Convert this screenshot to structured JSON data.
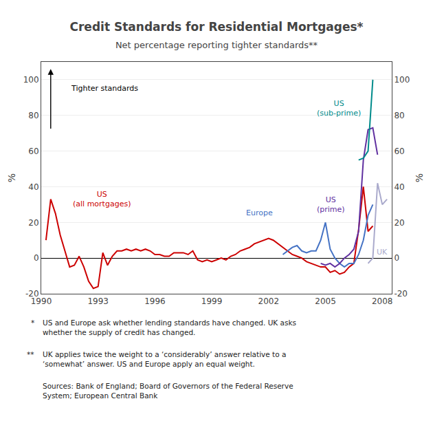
{
  "chart_data": {
    "type": "line",
    "title": "Credit Standards for Residential Mortgages*",
    "subtitle": "Net percentage reporting tighter standards**",
    "ylabel": "%",
    "y2label": "%",
    "xlim": [
      1990,
      2008.5
    ],
    "xticks": [
      1990,
      1993,
      1996,
      1999,
      2002,
      2005,
      2008
    ],
    "ylim": [
      -20,
      110
    ],
    "yticks": [
      -20,
      0,
      20,
      40,
      60,
      80,
      100
    ],
    "y2lim": [
      -20,
      110
    ],
    "y2ticks": [
      -20,
      0,
      20,
      40,
      60,
      80,
      100
    ],
    "grid": true,
    "series": [
      {
        "name": "US\n(all mortgages)",
        "color": "#cc0000",
        "label_x": 1993.2,
        "label_y": 27,
        "x": [
          1990.25,
          1990.5,
          1990.75,
          1991.0,
          1991.25,
          1991.5,
          1991.75,
          1992.0,
          1992.25,
          1992.5,
          1992.75,
          1993.0,
          1993.25,
          1993.5,
          1993.75,
          1994.0,
          1994.25,
          1994.5,
          1994.75,
          1995.0,
          1995.25,
          1995.5,
          1995.75,
          1996.0,
          1996.25,
          1996.5,
          1996.75,
          1997.0,
          1997.25,
          1997.5,
          1997.75,
          1998.0,
          1998.25,
          1998.5,
          1998.75,
          1999.0,
          1999.25,
          1999.5,
          1999.75,
          2000.0,
          2000.25,
          2000.5,
          2000.75,
          2001.0,
          2001.25,
          2001.5,
          2001.75,
          2002.0,
          2002.25,
          2002.5,
          2002.75,
          2003.0,
          2003.25,
          2003.5,
          2003.75,
          2004.0,
          2004.25,
          2004.5,
          2004.75,
          2005.0,
          2005.25,
          2005.5,
          2005.75,
          2006.0,
          2006.25,
          2006.5,
          2006.75,
          2007.0,
          2007.25,
          2007.5
        ],
        "values": [
          10,
          33,
          25,
          13,
          4,
          -5,
          -4,
          1,
          -5,
          -13,
          -17,
          -16,
          3,
          -4,
          1,
          4,
          4,
          5,
          4,
          5,
          4,
          5,
          4,
          2,
          2,
          1,
          1,
          3,
          3,
          3,
          2,
          4,
          -1,
          -2,
          -1,
          -2,
          -1,
          0,
          -1,
          1,
          2,
          4,
          5,
          6,
          8,
          9,
          10,
          11,
          10,
          8,
          6,
          4,
          2,
          1,
          0,
          -2,
          -3,
          -4,
          -5,
          -5,
          -8,
          -7,
          -9,
          -8,
          -5,
          -3,
          16,
          40,
          15,
          18
        ]
      },
      {
        "name": "Europe",
        "color": "#4472c4",
        "label_x": 2001.5,
        "label_y": 22,
        "x": [
          2002.75,
          2003.0,
          2003.25,
          2003.5,
          2003.75,
          2004.0,
          2004.25,
          2004.5,
          2004.75,
          2005.0,
          2005.25,
          2005.5,
          2005.75,
          2006.0,
          2006.25,
          2006.5,
          2006.75,
          2007.0,
          2007.25,
          2007.5
        ],
        "values": [
          2,
          4,
          6,
          7,
          4,
          3,
          4,
          4,
          10,
          20,
          5,
          0,
          -3,
          -5,
          -3,
          -3,
          2,
          10,
          24,
          30
        ]
      },
      {
        "name": "US\n(prime)",
        "color": "#6030a0",
        "label_x": 2005.3,
        "label_y": 24,
        "x": [
          2004.75,
          2005.0,
          2005.25,
          2005.5,
          2005.75,
          2006.0,
          2006.25,
          2006.5,
          2006.75,
          2007.0,
          2007.25,
          2007.5,
          2007.75
        ],
        "values": [
          -3,
          -4,
          -3,
          -5,
          -3,
          0,
          2,
          5,
          15,
          55,
          72,
          73,
          58
        ]
      },
      {
        "name": "US\n(sub-prime)",
        "color": "#008b8b",
        "label_x": 2005.7,
        "label_y": 78,
        "x": [
          2006.75,
          2007.0,
          2007.25,
          2007.5
        ],
        "values": [
          55,
          56,
          60,
          100
        ]
      },
      {
        "name": "UK",
        "color": "#aaaacc",
        "label_x": 2008.0,
        "label_y": 0,
        "x": [
          2007.25,
          2007.5,
          2007.75,
          2008.0,
          2008.25
        ],
        "values": [
          -3,
          0,
          42,
          30,
          33
        ]
      }
    ],
    "annotations": [
      {
        "text": "Tighter standards",
        "x": 1991.5,
        "y": 95,
        "arrow": {
          "x": 1990.5,
          "from_y": 72,
          "to_y": 106
        }
      }
    ],
    "footnotes": [
      {
        "bullet": "*",
        "text": "US and Europe ask whether lending standards have changed. UK asks\nwhether the supply of credit has changed."
      },
      {
        "bullet": "**",
        "text": "UK applies twice the weight to a ‘considerably’ answer relative to a\n‘somewhat’ answer. US and Europe apply an equal weight."
      },
      {
        "text": "Sources: Bank of England; Board of Governors of the Federal Reserve\nSystem; European Central Bank"
      }
    ]
  }
}
